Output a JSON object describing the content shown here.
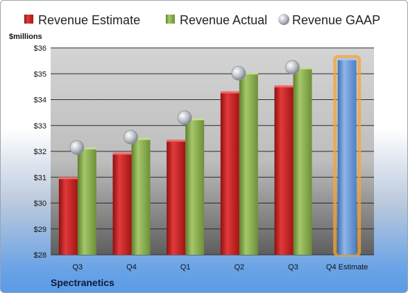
{
  "chart_data": {
    "type": "bar",
    "categories": [
      "Q3",
      "Q4",
      "Q1",
      "Q2",
      "Q3",
      "Q4 Estimate"
    ],
    "series": [
      {
        "name": "Revenue Estimate",
        "values": [
          30.95,
          31.9,
          32.4,
          34.27,
          34.5,
          35.55
        ]
      },
      {
        "name": "Revenue Actual",
        "values": [
          32.1,
          32.47,
          33.23,
          35.0,
          35.2,
          null
        ]
      },
      {
        "name": "Revenue GAAP",
        "values": [
          32.15,
          32.55,
          33.3,
          35.02,
          35.25,
          null
        ]
      }
    ],
    "ylabel": "$millions",
    "ylim": [
      28,
      36
    ],
    "yticks": [
      28,
      29,
      30,
      31,
      32,
      33,
      34,
      35,
      36
    ],
    "ytick_labels": [
      "$28",
      "$29",
      "$30",
      "$31",
      "$32",
      "$33",
      "$34",
      "$35",
      "$36"
    ],
    "grid": true,
    "legend_position": "top",
    "colors": {
      "estimate": "#cc1f1f",
      "actual": "#8cb050",
      "gaap": "#b8bcc4",
      "forecast": "#6f9fd8",
      "forecast_glow": "#f4a43a"
    }
  },
  "company": "Spectranetics"
}
